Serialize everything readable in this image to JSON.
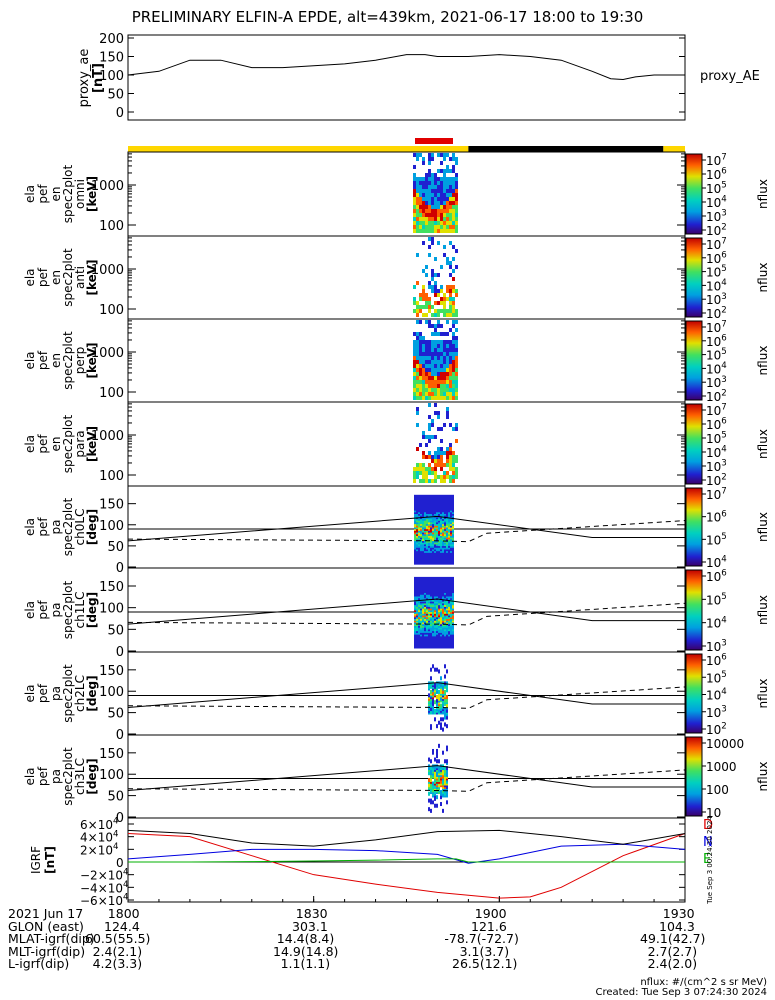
{
  "title": "PRELIMINARY ELFIN-A EPDE, alt=439km, 2021-06-17 18:00 to 19:30",
  "colors": {
    "orbit_yellow": "#ffd700",
    "orbit_black": "#000000",
    "science_red": "#e00000",
    "grf_d": "#e00000",
    "grf_n": "#0000e0",
    "grf_e": "#00b000"
  },
  "ae_panel": {
    "ylabel_lines": [
      "proxy_ae",
      "[nT]"
    ],
    "yticks": [
      "200",
      "150",
      "100",
      "50",
      "0"
    ],
    "series_label": "proxy_AE"
  },
  "spec_panels": [
    {
      "ylabel_lines": [
        "ela",
        "pef",
        "en",
        "spec2plot",
        "omni",
        "[keV]"
      ],
      "yticks": [
        "1000",
        "100"
      ]
    },
    {
      "ylabel_lines": [
        "ela",
        "pef",
        "en",
        "spec2plot",
        "anti",
        "[keV]"
      ],
      "yticks": [
        "1000",
        "100"
      ]
    },
    {
      "ylabel_lines": [
        "ela",
        "pef",
        "en",
        "spec2plot",
        "perp",
        "[keV]"
      ],
      "yticks": [
        "1000",
        "100"
      ]
    },
    {
      "ylabel_lines": [
        "ela",
        "pef",
        "en",
        "spec2plot",
        "para",
        "[keV]"
      ],
      "yticks": [
        "1000",
        "100"
      ]
    }
  ],
  "pa_panels": [
    {
      "ylabel_lines": [
        "ela",
        "pef",
        "pa",
        "spec2plot",
        "ch0LC",
        "[deg]"
      ],
      "yticks": [
        "150",
        "100",
        "50",
        "0"
      ]
    },
    {
      "ylabel_lines": [
        "ela",
        "pef",
        "pa",
        "spec2plot",
        "ch1LC",
        "[deg]"
      ],
      "yticks": [
        "150",
        "100",
        "50",
        "0"
      ]
    },
    {
      "ylabel_lines": [
        "ela",
        "pef",
        "pa",
        "spec2plot",
        "ch2LC",
        "[deg]"
      ],
      "yticks": [
        "150",
        "100",
        "50",
        "0"
      ]
    },
    {
      "ylabel_lines": [
        "ela",
        "pef",
        "pa",
        "spec2plot",
        "ch3LC",
        "[deg]"
      ],
      "yticks": [
        "150",
        "100",
        "50",
        "0"
      ]
    }
  ],
  "colorbars": [
    {
      "label": "nflux",
      "ticks": [
        "10^7",
        "10^6",
        "10^5",
        "10^4",
        "10^3",
        "10^2"
      ]
    },
    {
      "label": "nflux",
      "ticks": [
        "10^7",
        "10^6",
        "10^5",
        "10^4",
        "10^3",
        "10^2"
      ]
    },
    {
      "label": "nflux",
      "ticks": [
        "10^7",
        "10^6",
        "10^5",
        "10^4",
        "10^3",
        "10^2"
      ]
    },
    {
      "label": "nflux",
      "ticks": [
        "10^7",
        "10^6",
        "10^5",
        "10^4",
        "10^3",
        "10^2"
      ]
    },
    {
      "label": "nflux",
      "ticks": [
        "10^7",
        "10^6",
        "10^5",
        "10^4"
      ]
    },
    {
      "label": "nflux",
      "ticks": [
        "10^6",
        "10^5",
        "10^4",
        "10^3"
      ]
    },
    {
      "label": "nflux",
      "ticks": [
        "10^6",
        "10^5",
        "10^4",
        "10^3",
        "10^2"
      ]
    },
    {
      "label": "nflux",
      "ticks": [
        "10000",
        "1000",
        "100",
        "10"
      ]
    }
  ],
  "grf_panel": {
    "ylabel_lines": [
      "IGRF",
      "[nT]"
    ],
    "yticks": [
      "6×10^4",
      "4×10^4",
      "2×10^4",
      "0",
      "−2×10^4",
      "−4×10^4",
      "−6×10^4"
    ],
    "legend": [
      "D",
      "N",
      "E"
    ]
  },
  "side_stamp": "Tue Sep  3 00:24:30 2024",
  "footer": {
    "rows": [
      {
        "label": "2021 Jun 17",
        "values": [
          "1800",
          "1830",
          "1900",
          "1930"
        ]
      },
      {
        "label": "GLON (east)",
        "values": [
          "124.4",
          "303.1",
          "121.6",
          "104.3"
        ]
      },
      {
        "label": "MLAT-igrf(dip)",
        "values": [
          "60.5(55.5)",
          "14.4(8.4)",
          "-78.7(-72.7)",
          "49.1(42.7)"
        ]
      },
      {
        "label": "MLT-igrf(dip)",
        "values": [
          "2.4(2.1)",
          "14.9(14.8)",
          "3.1(3.7)",
          "2.7(2.7)"
        ]
      },
      {
        "label": "L-igrf(dip)",
        "values": [
          "4.2(3.3)",
          "1.1(1.1)",
          "26.5(12.1)",
          "2.4(2.0)"
        ]
      }
    ],
    "units_note": "nflux: #/(cm^2 s sr MeV)",
    "created": "Created: Tue Sep  3 07:24:30 2024"
  },
  "chart_data": [
    {
      "type": "line",
      "title": "PRELIMINARY ELFIN-A EPDE, alt=439km, 2021-06-17 18:00 to 19:30",
      "ylabel": "proxy_ae [nT]",
      "ylim": [
        0,
        200
      ],
      "xlim": [
        0,
        90
      ],
      "series": [
        {
          "name": "proxy_AE",
          "x": [
            0,
            5,
            10,
            15,
            20,
            25,
            30,
            35,
            40,
            45,
            48,
            50,
            55,
            60,
            65,
            70,
            75,
            78,
            80,
            82,
            85,
            90
          ],
          "y": [
            100,
            110,
            140,
            140,
            120,
            120,
            125,
            130,
            140,
            155,
            155,
            150,
            150,
            155,
            150,
            140,
            110,
            90,
            88,
            95,
            100,
            100
          ]
        }
      ]
    },
    {
      "type": "heatmap",
      "ylabel": "energy [keV]",
      "yscale": "log",
      "ylim": [
        63,
        6000
      ],
      "active_x_range": [
        50.5,
        56.5
      ],
      "colorbar": {
        "label": "nflux",
        "scale": "log",
        "range": [
          100,
          10000000
        ]
      }
    },
    {
      "type": "line",
      "ylabel": "IGRF [nT]",
      "ylim": [
        -60000,
        60000
      ],
      "xlim": [
        0,
        90
      ],
      "series": [
        {
          "name": "D",
          "x": [
            0,
            10,
            20,
            30,
            40,
            50,
            60,
            65,
            70,
            80,
            90
          ],
          "y": [
            45000,
            40000,
            10000,
            -20000,
            -35000,
            -48000,
            -57000,
            -55000,
            -40000,
            10000,
            45000
          ]
        },
        {
          "name": "N",
          "x": [
            0,
            10,
            20,
            30,
            40,
            50,
            55,
            60,
            65,
            70,
            80,
            90
          ],
          "y": [
            5000,
            12000,
            20000,
            20000,
            18000,
            12000,
            -2000,
            5000,
            15000,
            25000,
            28000,
            20000
          ]
        },
        {
          "name": "E",
          "x": [
            0,
            10,
            20,
            30,
            40,
            50,
            53,
            55,
            60,
            70,
            80,
            90
          ],
          "y": [
            0,
            0,
            500,
            1500,
            3000,
            5000,
            5000,
            0,
            0,
            0,
            0,
            0
          ]
        },
        {
          "name": "total",
          "x": [
            0,
            10,
            20,
            30,
            40,
            50,
            60,
            70,
            80,
            90
          ],
          "y": [
            50000,
            45000,
            30000,
            25000,
            35000,
            48000,
            50000,
            40000,
            28000,
            45000
          ]
        }
      ]
    }
  ]
}
